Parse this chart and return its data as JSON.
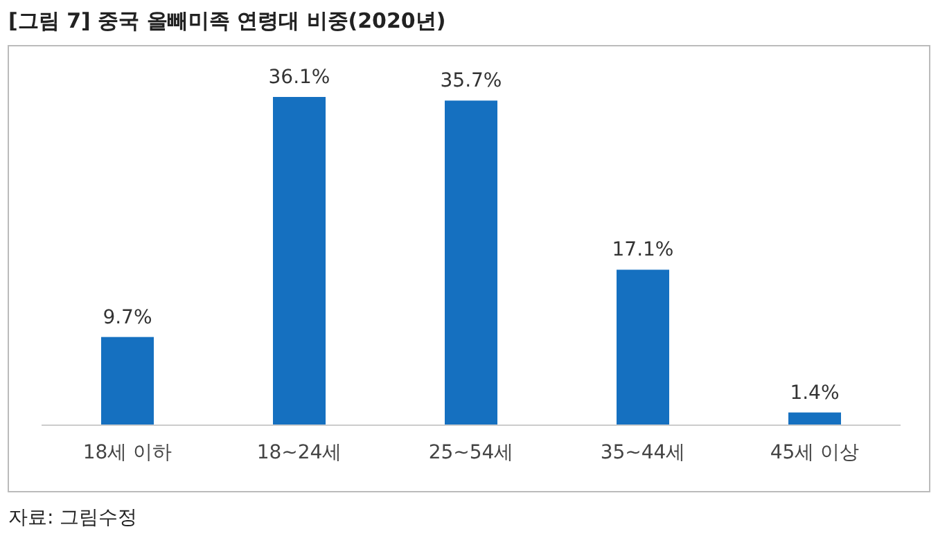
{
  "chart_data": {
    "type": "bar",
    "title": "[그림 7] 중국 올빼미족 연령대 비중(2020년)",
    "categories": [
      "18세 이하",
      "18~24세",
      "25~54세",
      "35~44세",
      "45세 이상"
    ],
    "values": [
      9.7,
      36.1,
      35.7,
      17.1,
      1.4
    ],
    "value_labels": [
      "9.7%",
      "36.1%",
      "35.7%",
      "17.1%",
      "1.4%"
    ],
    "color": "#1570c0",
    "annotations": [
      "자료: 그림수정"
    ]
  }
}
